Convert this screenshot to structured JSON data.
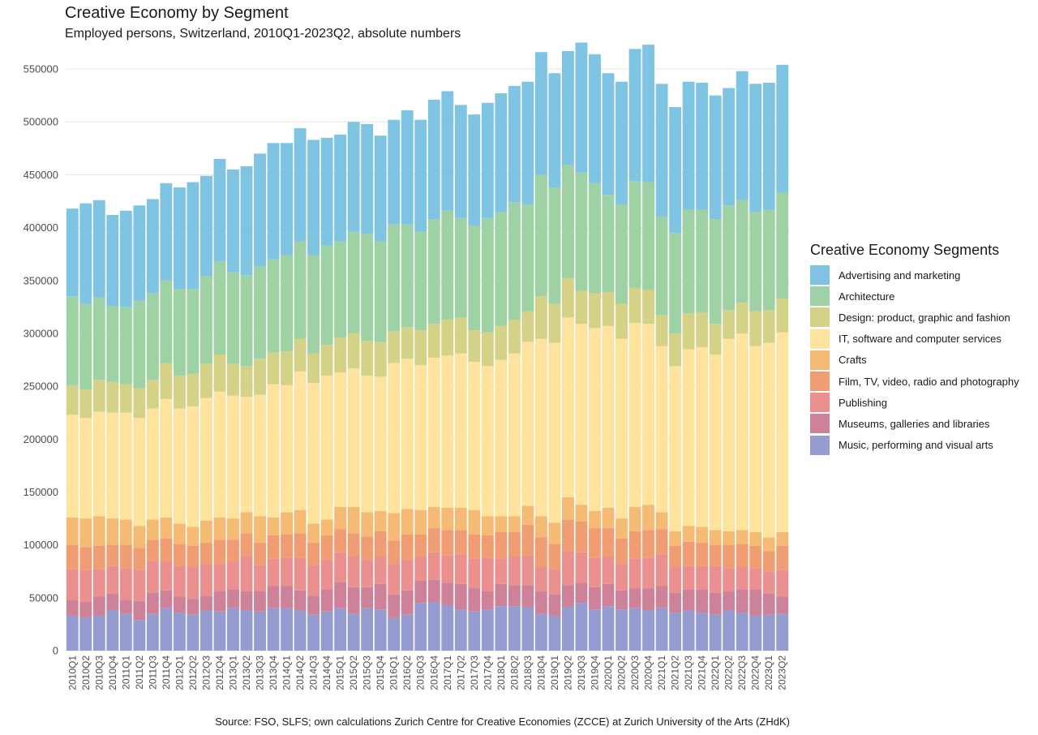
{
  "title": "Creative Economy by Segment",
  "subtitle": "Employed persons, Switzerland, 2010Q1-2023Q2, absolute numbers",
  "caption": "Source: FSO, SLFS; own calculations Zurich Centre for Creative Economies (ZCCE) at Zurich University of the Arts (ZHdK)",
  "legend_title": "Creative Economy Segments",
  "chart_data": {
    "type": "bar",
    "stacked": true,
    "title": "Creative Economy by Segment",
    "subtitle": "Employed persons, Switzerland, 2010Q1-2023Q2, absolute numbers",
    "xlabel": "",
    "ylabel": "",
    "ylim": [
      0,
      570000
    ],
    "yticks": [
      0,
      50000,
      100000,
      150000,
      200000,
      250000,
      300000,
      350000,
      400000,
      450000,
      500000,
      550000
    ],
    "grid": "horizontal",
    "legend_position": "right",
    "categories": [
      "2010Q1",
      "2010Q2",
      "2010Q3",
      "2010Q4",
      "2011Q1",
      "2011Q2",
      "2011Q3",
      "2011Q4",
      "2012Q1",
      "2012Q2",
      "2012Q3",
      "2012Q4",
      "2013Q1",
      "2013Q2",
      "2013Q3",
      "2013Q4",
      "2014Q1",
      "2014Q2",
      "2014Q3",
      "2014Q4",
      "2015Q1",
      "2015Q2",
      "2015Q3",
      "2015Q4",
      "2016Q1",
      "2016Q2",
      "2016Q3",
      "2016Q4",
      "2017Q1",
      "2017Q2",
      "2017Q3",
      "2017Q4",
      "2018Q1",
      "2018Q2",
      "2018Q3",
      "2018Q4",
      "2019Q1",
      "2019Q2",
      "2019Q3",
      "2019Q4",
      "2020Q1",
      "2020Q2",
      "2020Q3",
      "2020Q4",
      "2021Q1",
      "2021Q2",
      "2021Q3",
      "2021Q4",
      "2022Q1",
      "2022Q2",
      "2022Q3",
      "2022Q4",
      "2023Q1",
      "2023Q2"
    ],
    "series": [
      {
        "name": "Music, performing and visual arts",
        "color": "#959ccf",
        "values": [
          33000,
          31000,
          33000,
          38000,
          35000,
          29000,
          35000,
          40000,
          36000,
          34000,
          38000,
          37000,
          40000,
          38000,
          37000,
          40000,
          40000,
          38000,
          34000,
          37000,
          40000,
          35000,
          40000,
          39000,
          31000,
          34000,
          45000,
          46000,
          43000,
          39000,
          37000,
          39000,
          42000,
          42000,
          41000,
          35000,
          33000,
          41000,
          45000,
          39000,
          42000,
          39000,
          40000,
          38000,
          40000,
          36000,
          38000,
          36000,
          34000,
          38000,
          36000,
          33000,
          34000,
          35000
        ]
      },
      {
        "name": "Museums, galleries and libraries",
        "color": "#cd8299",
        "values": [
          15000,
          15000,
          18000,
          16000,
          13000,
          18000,
          20000,
          17000,
          15000,
          15000,
          14000,
          19000,
          18000,
          18000,
          19000,
          21000,
          21000,
          19000,
          18000,
          21000,
          25000,
          25000,
          20000,
          24000,
          22000,
          23000,
          21000,
          21000,
          21000,
          24000,
          22000,
          17000,
          21000,
          20000,
          21000,
          21000,
          20000,
          21000,
          19000,
          21000,
          21000,
          18000,
          19000,
          21000,
          21000,
          19000,
          20000,
          22000,
          21000,
          18000,
          22000,
          25000,
          20000,
          16000
        ]
      },
      {
        "name": "Publishing",
        "color": "#ec8f8f",
        "values": [
          29000,
          30000,
          26000,
          26000,
          30000,
          29000,
          30000,
          27000,
          29000,
          30000,
          30000,
          26000,
          26000,
          33000,
          25000,
          26000,
          27000,
          31000,
          29000,
          28000,
          28000,
          29000,
          26000,
          26000,
          29000,
          29000,
          23000,
          26000,
          26000,
          28000,
          28000,
          32000,
          24000,
          27000,
          28000,
          23000,
          24000,
          32000,
          29000,
          28000,
          26000,
          25000,
          28000,
          29000,
          30000,
          24000,
          22000,
          22000,
          25000,
          22000,
          21000,
          20000,
          21000,
          25000
        ]
      },
      {
        "name": "Film, TV, video, radio and photography",
        "color": "#f09d73",
        "values": [
          23000,
          22000,
          22000,
          20000,
          22000,
          21000,
          20000,
          22000,
          21000,
          20000,
          20000,
          23000,
          21000,
          22000,
          21000,
          22000,
          22000,
          23000,
          21000,
          23000,
          22000,
          22000,
          22000,
          24000,
          22000,
          24000,
          21000,
          23000,
          24000,
          23000,
          23000,
          21000,
          25000,
          23000,
          29000,
          28000,
          24000,
          30000,
          29000,
          28000,
          27000,
          24000,
          26000,
          26000,
          24000,
          20000,
          23000,
          22000,
          20000,
          22000,
          22000,
          21000,
          19000,
          23000
        ]
      },
      {
        "name": "Crafts",
        "color": "#f5bb74",
        "values": [
          26000,
          27000,
          28000,
          25000,
          24000,
          21000,
          19000,
          20000,
          19000,
          18000,
          21000,
          21000,
          20000,
          20000,
          25000,
          17000,
          21000,
          22000,
          18000,
          15000,
          21000,
          25000,
          23000,
          19000,
          26000,
          24000,
          23000,
          20000,
          21000,
          21000,
          23000,
          18000,
          15000,
          15000,
          18000,
          20000,
          20000,
          21000,
          16000,
          16000,
          19000,
          19000,
          23000,
          24000,
          16000,
          14000,
          15000,
          15000,
          14000,
          13000,
          13000,
          13000,
          13000,
          13000
        ]
      },
      {
        "name": "IT, software and computer services",
        "color": "#fee39e",
        "values": [
          97000,
          95000,
          99000,
          100000,
          101000,
          102000,
          105000,
          112000,
          109000,
          114000,
          116000,
          119000,
          116000,
          109000,
          115000,
          126000,
          120000,
          131000,
          133000,
          136000,
          127000,
          131000,
          129000,
          127000,
          142000,
          142000,
          137000,
          141000,
          144000,
          146000,
          140000,
          142000,
          148000,
          154000,
          155000,
          168000,
          170000,
          170000,
          171000,
          173000,
          172000,
          170000,
          174000,
          171000,
          157000,
          156000,
          167000,
          170000,
          166000,
          182000,
          186000,
          176000,
          184000,
          189000
        ]
      },
      {
        "name": "Design: product, graphic and fashion",
        "color": "#d4d287",
        "values": [
          28000,
          27000,
          30000,
          29000,
          27000,
          28000,
          27000,
          34000,
          31000,
          31000,
          32000,
          35000,
          30000,
          29000,
          34000,
          30000,
          32000,
          31000,
          28000,
          29000,
          33000,
          33000,
          33000,
          33000,
          30000,
          30000,
          33000,
          32000,
          34000,
          34000,
          30000,
          32000,
          32000,
          32000,
          29000,
          40000,
          37000,
          37000,
          31000,
          33000,
          32000,
          33000,
          33000,
          32000,
          29000,
          31000,
          34000,
          33000,
          29000,
          27000,
          29000,
          33000,
          31000,
          32000
        ]
      },
      {
        "name": "Architecture",
        "color": "#9ed1a3",
        "values": [
          84000,
          81000,
          78000,
          72000,
          73000,
          83000,
          82000,
          78000,
          82000,
          80000,
          83000,
          88000,
          87000,
          86000,
          87000,
          88000,
          91000,
          92000,
          93000,
          94000,
          91000,
          96000,
          101000,
          95000,
          101000,
          97000,
          93000,
          99000,
          103000,
          94000,
          99000,
          108000,
          108000,
          111000,
          101000,
          115000,
          110000,
          107000,
          112000,
          104000,
          92000,
          94000,
          101000,
          102000,
          93000,
          95000,
          98000,
          97000,
          99000,
          99000,
          97000,
          94000,
          95000,
          100000
        ]
      },
      {
        "name": "Advertising and marketing",
        "color": "#7fc4e2",
        "values": [
          83000,
          95000,
          92000,
          86000,
          91000,
          90000,
          89000,
          92000,
          96000,
          101000,
          95000,
          97000,
          97000,
          103000,
          107000,
          110000,
          106000,
          107000,
          109000,
          102000,
          101000,
          104000,
          104000,
          100000,
          99000,
          108000,
          106000,
          113000,
          113000,
          107000,
          105000,
          109000,
          112000,
          110000,
          116000,
          116000,
          108000,
          108000,
          123000,
          122000,
          115000,
          116000,
          125000,
          130000,
          126000,
          119000,
          121000,
          120000,
          117000,
          111000,
          122000,
          121000,
          120000,
          121000
        ]
      }
    ]
  }
}
